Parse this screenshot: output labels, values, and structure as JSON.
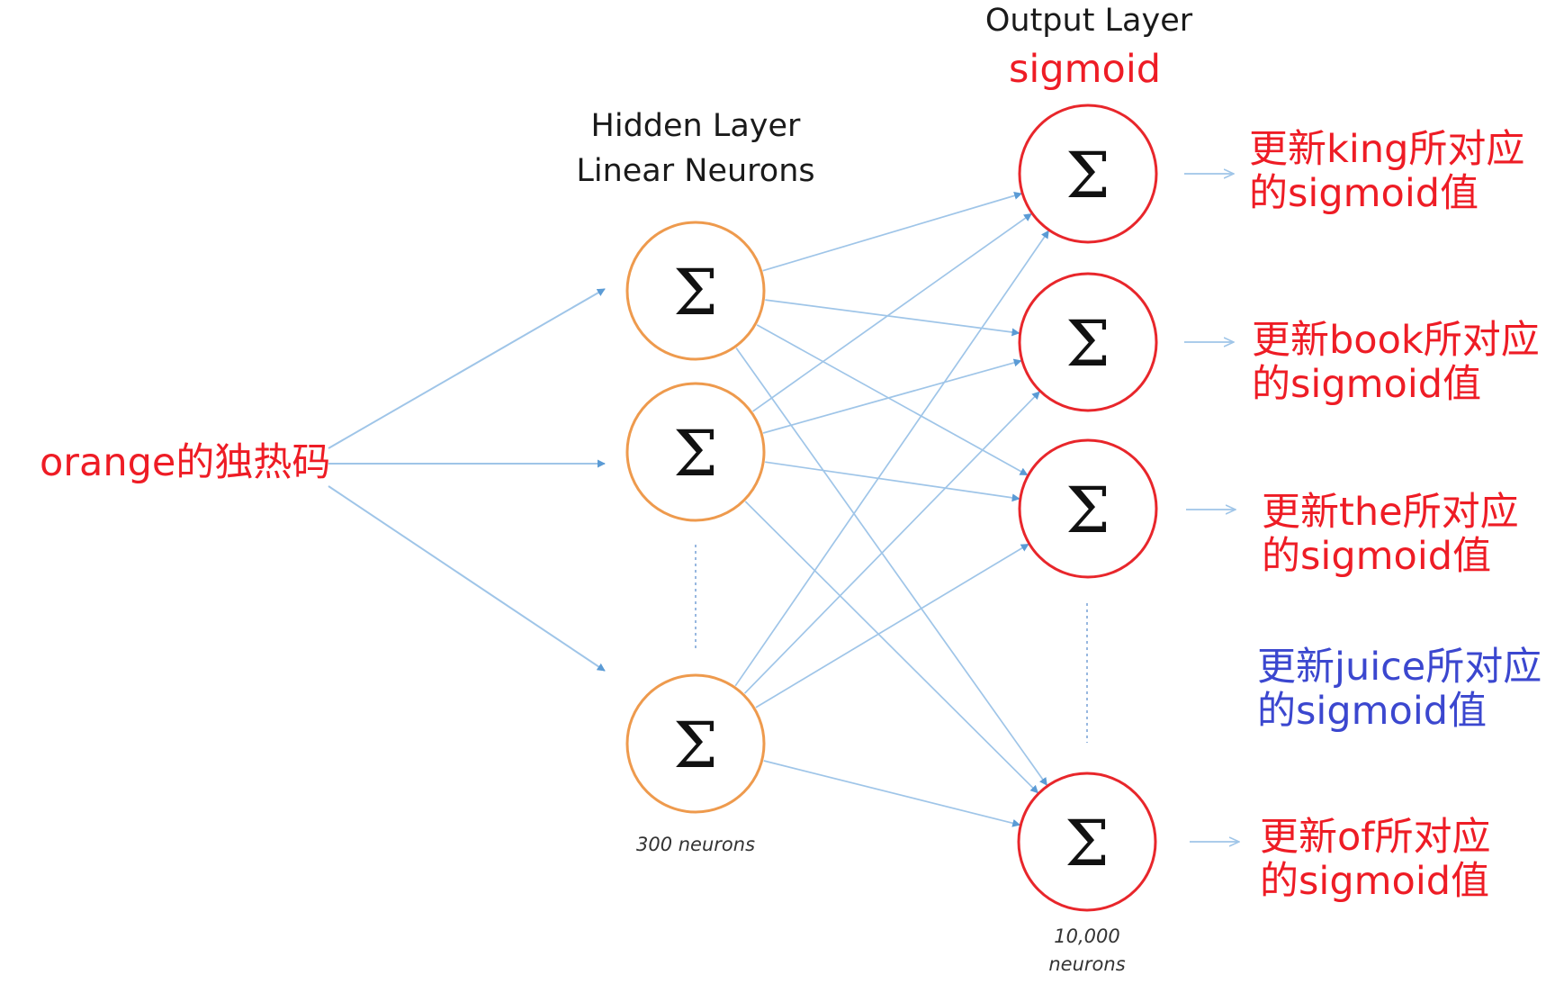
{
  "layers": {
    "output_title": "Output Layer",
    "output_activation": "sigmoid",
    "hidden_title_line1": "Hidden Layer",
    "hidden_title_line2": "Linear Neurons",
    "hidden_count": "300 neurons",
    "output_count_line1": "10,000",
    "output_count_line2": "neurons"
  },
  "input": {
    "label": "orange的独热码"
  },
  "neuron_symbol": "Σ",
  "outputs": [
    {
      "line1": "更新king所对应",
      "line2": "的sigmoid值"
    },
    {
      "line1": "更新book所对应",
      "line2": "的sigmoid值"
    },
    {
      "line1": "更新the所对应",
      "line2": "的sigmoid值"
    },
    {
      "line1": "更新juice所对应",
      "line2": "的sigmoid值"
    },
    {
      "line1": "更新of所对应",
      "line2": "的sigmoid值"
    }
  ],
  "colors": {
    "hidden_node": "#ee9a4d",
    "output_node": "#e8262b",
    "connection": "#9fc5e8",
    "arrowhead": "#5b9bd5",
    "label_red": "#ee1c25",
    "label_blue": "#3b47cf"
  }
}
